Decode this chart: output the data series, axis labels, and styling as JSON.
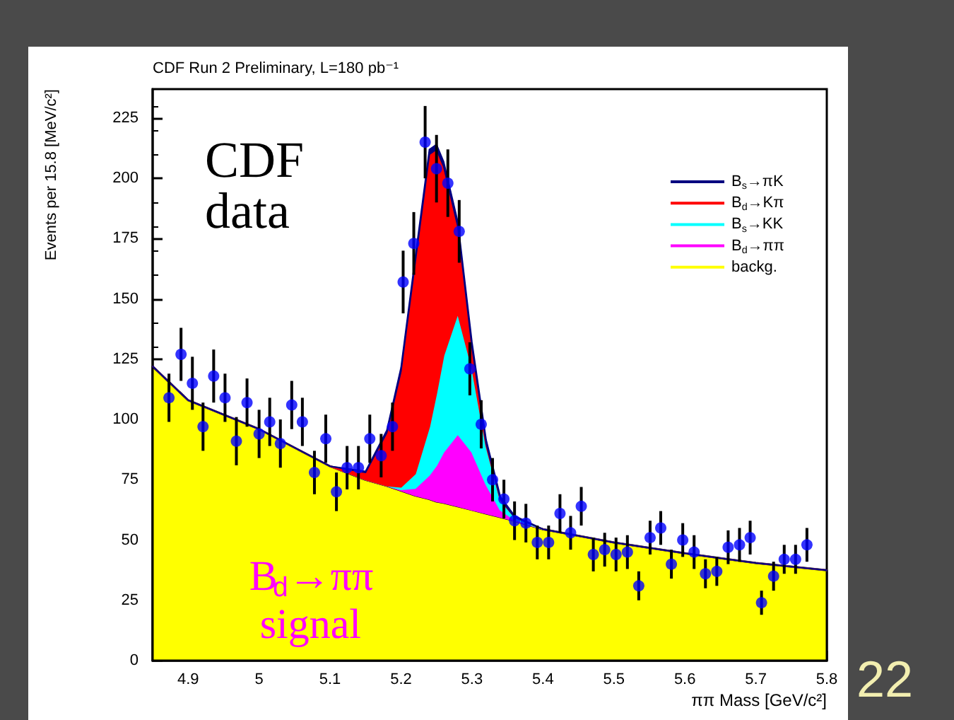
{
  "chart_data": {
    "type": "area",
    "title": "CDF Run 2 Preliminary, L=180 pb⁻¹",
    "xlabel": "ππ Mass [GeV/c²]",
    "ylabel": "Events per 15.8 [MeV/c²]",
    "x": [
      4.85,
      4.9,
      5.0,
      5.1,
      5.15,
      5.18,
      5.2,
      5.22,
      5.24,
      5.25,
      5.26,
      5.28,
      5.3,
      5.32,
      5.34,
      5.36,
      5.4,
      5.5,
      5.6,
      5.7,
      5.8
    ],
    "stacked": true,
    "series": [
      {
        "name": "backg.",
        "color": "#ffff00",
        "values": [
          122,
          108,
          96,
          80.6,
          75,
          72.5,
          70.5,
          68.5,
          67,
          66,
          65.5,
          64,
          62.5,
          61,
          59.5,
          58,
          54.5,
          49,
          44.5,
          40.5,
          37.5
        ]
      },
      {
        "name": "B$_{d}$→ππ",
        "color": "#ff00ff",
        "values": [
          0,
          0,
          0,
          0,
          0,
          0,
          0.5,
          3,
          10,
          15,
          21,
          30,
          24,
          12,
          3,
          0.5,
          0,
          0,
          0,
          0,
          0
        ]
      },
      {
        "name": "B$_{s}$→KK",
        "color": "#00ffff",
        "values": [
          0,
          0,
          0,
          0,
          0,
          0,
          1,
          6,
          20,
          30,
          40,
          50,
          35,
          16,
          4,
          1,
          0,
          0,
          0,
          0,
          0
        ]
      },
      {
        "name": "B$_{d}$→Kπ",
        "color": "#ff0000",
        "values": [
          0,
          0,
          0,
          0,
          3,
          22,
          48,
          87.5,
          113,
          101,
          78.5,
          36,
          8.5,
          1,
          0.5,
          0,
          0,
          0,
          0,
          0,
          0
        ]
      },
      {
        "name": "B$_{s}$→πK",
        "color": "#000080",
        "values": [
          0,
          0,
          0,
          0,
          0.5,
          1,
          1.5,
          2,
          2,
          2,
          2,
          2,
          2,
          1.5,
          1,
          0.5,
          0,
          0,
          0,
          0,
          0
        ]
      },
      {
        "type": "scatter",
        "color": "#0000ff",
        "marker": "circle",
        "x": [
          4.873,
          4.89,
          4.906,
          4.921,
          4.936,
          4.952,
          4.968,
          4.983,
          5.0,
          5.015,
          5.03,
          5.046,
          5.061,
          5.078,
          5.094,
          5.109,
          5.124,
          5.14,
          5.156,
          5.172,
          5.188,
          5.203,
          5.218,
          5.234,
          5.25,
          5.266,
          5.282,
          5.297,
          5.313,
          5.329,
          5.345,
          5.36,
          5.376,
          5.392,
          5.408,
          5.424,
          5.439,
          5.454,
          5.471,
          5.487,
          5.503,
          5.519,
          5.535,
          5.551,
          5.566,
          5.581,
          5.597,
          5.613,
          5.629,
          5.645,
          5.661,
          5.677,
          5.692,
          5.708,
          5.725,
          5.74,
          5.756,
          5.772
        ],
        "values": [
          109,
          127,
          115,
          97,
          118,
          109,
          91,
          107,
          94,
          99,
          90,
          106,
          99,
          78,
          92,
          70,
          80,
          80,
          92,
          85,
          97,
          157,
          173,
          215,
          204,
          198,
          178,
          121,
          98,
          75,
          67,
          58,
          57,
          49,
          49,
          61,
          53,
          64,
          44,
          46,
          44,
          45,
          31,
          51,
          55,
          40,
          50,
          45,
          36,
          37,
          47,
          48,
          51,
          24,
          35,
          42,
          42,
          48
        ],
        "errors": [
          10,
          11,
          11,
          10,
          11,
          10,
          10,
          10,
          10,
          10,
          10,
          10,
          10,
          9,
          10,
          8,
          9,
          9,
          10,
          9,
          10,
          13,
          13,
          15,
          14,
          14,
          13,
          11,
          10,
          9,
          8,
          8,
          8,
          7,
          7,
          8,
          7,
          8,
          7,
          7,
          7,
          7,
          6,
          7,
          7,
          6,
          7,
          7,
          6,
          6,
          7,
          7,
          7,
          5,
          6,
          6,
          6,
          7
        ]
      }
    ],
    "xlim": [
      4.85,
      5.8
    ],
    "xticks": [
      4.9,
      5,
      5.1,
      5.2,
      5.3,
      5.4,
      5.5,
      5.6,
      5.7,
      5.8
    ],
    "ylim": [
      0,
      237
    ],
    "yticks": [
      0,
      25,
      50,
      75,
      100,
      125,
      150,
      175,
      200,
      225
    ],
    "legend": "right",
    "annotations": [
      "CDF data",
      {
        "text": "B$_{d}$→ππ signal",
        "x": 5.255,
        "y": 66
      },
      "22"
    ]
  }
}
